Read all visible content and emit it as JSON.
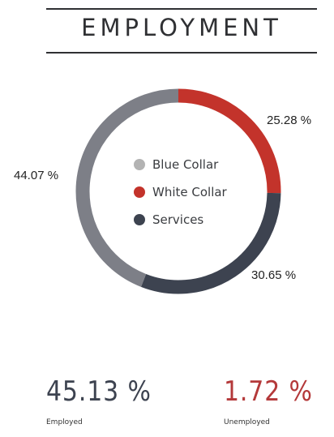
{
  "title": "EMPLOYMENT",
  "colors": {
    "blue_collar": "#7d7f87",
    "white_collar": "#c3332b",
    "services": "#3d4350",
    "legend_blue_collar": "#b3b3b3",
    "employed": "#3d4350",
    "unemployed": "#b4393a"
  },
  "chart_data": {
    "type": "pie",
    "donut": true,
    "categories": [
      "Blue Collar",
      "White Collar",
      "Services"
    ],
    "values": [
      44.07,
      25.28,
      30.65
    ],
    "labels": [
      "44.07 %",
      "25.28 %",
      "30.65 %"
    ],
    "legend": [
      "Blue Collar",
      "White Collar",
      "Services"
    ],
    "legend_position": "center"
  },
  "stats": {
    "employed_value": "45.13 %",
    "employed_label": "Employed",
    "unemployed_value": "1.72 %",
    "unemployed_label": "Unemployed"
  }
}
